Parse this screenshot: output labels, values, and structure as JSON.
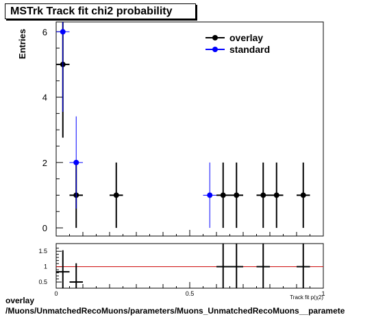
{
  "chart_data": {
    "type": "scatter",
    "title": "MSTrk Track fit chi2 probability",
    "ylabel": "Entries",
    "xlabel": "Track fit p(χ2)",
    "xlim": [
      0,
      1
    ],
    "ylim": [
      -0.25,
      6.3
    ],
    "y_ticks": [
      "0",
      "2",
      "4",
      "6"
    ],
    "x_ticks": [
      "0",
      "0.5",
      "1"
    ],
    "legend": {
      "position": "top-right"
    },
    "series": [
      {
        "name": "overlay",
        "color": "#000000",
        "points": [
          {
            "x": 0.025,
            "y": 5,
            "ex": 0.025,
            "ey": 2.24
          },
          {
            "x": 0.075,
            "y": 1,
            "ex": 0.025,
            "ey": 1
          },
          {
            "x": 0.225,
            "y": 1,
            "ex": 0.025,
            "ey": 1
          },
          {
            "x": 0.625,
            "y": 1,
            "ex": 0.025,
            "ey": 1
          },
          {
            "x": 0.675,
            "y": 1,
            "ex": 0.025,
            "ey": 1
          },
          {
            "x": 0.775,
            "y": 1,
            "ex": 0.025,
            "ey": 1
          },
          {
            "x": 0.825,
            "y": 1,
            "ex": 0.025,
            "ey": 1
          },
          {
            "x": 0.925,
            "y": 1,
            "ex": 0.025,
            "ey": 1
          }
        ]
      },
      {
        "name": "standard",
        "color": "#0000ff",
        "points": [
          {
            "x": 0.025,
            "y": 6,
            "ex": 0.025,
            "ey": 2.45
          },
          {
            "x": 0.075,
            "y": 2,
            "ex": 0.025,
            "ey": 1.41
          },
          {
            "x": 0.575,
            "y": 1,
            "ex": 0.025,
            "ey": 1
          }
        ]
      }
    ],
    "ratio": {
      "ylim": [
        0.3,
        1.75
      ],
      "y_ticks": [
        "0.5",
        "1",
        "1.5"
      ],
      "reference_line": 1,
      "reference_color": "#cc0000",
      "points": [
        {
          "x": 0.025,
          "y": 0.833,
          "ex": 0.025,
          "ey": 0.7
        },
        {
          "x": 0.075,
          "y": 0.5,
          "ex": 0.025,
          "ey": 0.61
        },
        {
          "x": 0.625,
          "y": 1,
          "ex": 0.025,
          "ey": 1
        },
        {
          "x": 0.675,
          "y": 1,
          "ex": 0.025,
          "ey": 1
        },
        {
          "x": 0.775,
          "y": 1,
          "ex": 0.025,
          "ey": 1
        },
        {
          "x": 0.925,
          "y": 1,
          "ex": 0.025,
          "ey": 1
        }
      ]
    }
  },
  "footer": {
    "line1": "overlay",
    "line2": "/Muons/UnmatchedRecoMuons/parameters/Muons_UnmatchedRecoMuons__paramete"
  }
}
